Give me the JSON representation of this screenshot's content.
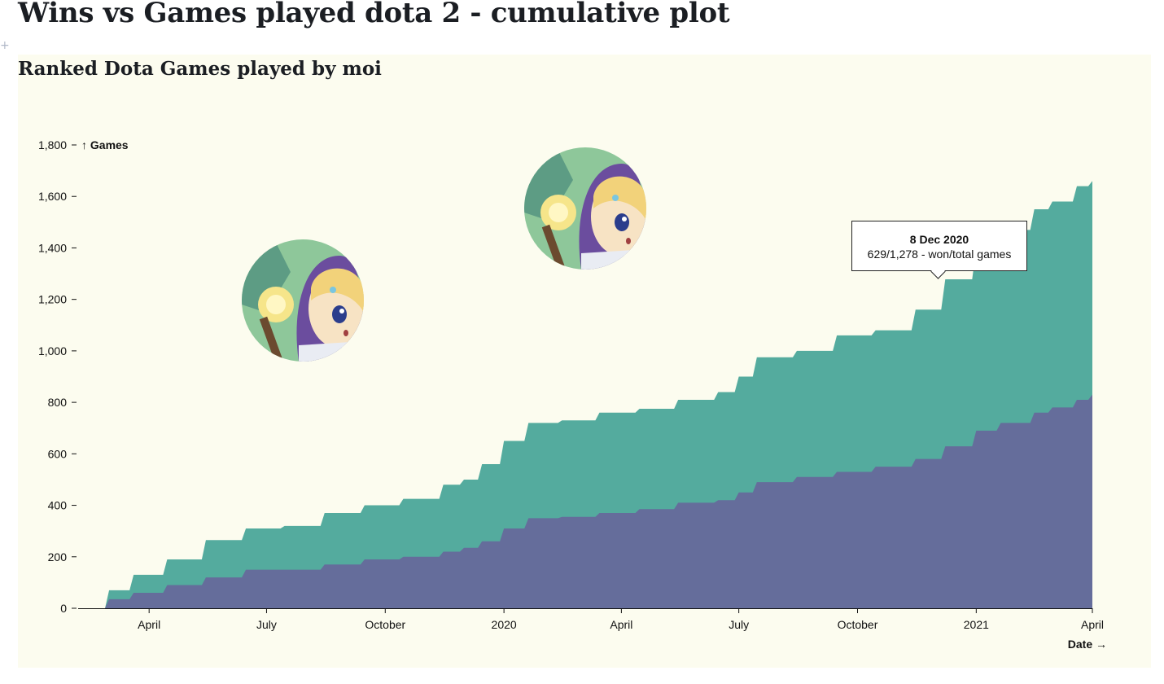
{
  "page": {
    "title": "Wins vs Games played dota 2 - cumulative plot",
    "cell_marker": "+"
  },
  "chart_data": {
    "type": "area",
    "title": "Ranked Dota Games played by moi",
    "xlabel": "Date →",
    "ylabel": "↑ Games",
    "ylim": [
      0,
      1800
    ],
    "xlim": [
      "2019-02-05",
      "2021-04-01"
    ],
    "yticks": [
      0,
      200,
      400,
      600,
      800,
      1000,
      1200,
      1400,
      1600,
      1800
    ],
    "xticks": [
      {
        "date": "2019-04-01",
        "label": "April"
      },
      {
        "date": "2019-07-01",
        "label": "July"
      },
      {
        "date": "2019-10-01",
        "label": "October"
      },
      {
        "date": "2020-01-01",
        "label": "2020"
      },
      {
        "date": "2020-04-01",
        "label": "April"
      },
      {
        "date": "2020-07-01",
        "label": "July"
      },
      {
        "date": "2020-10-01",
        "label": "October"
      },
      {
        "date": "2021-01-01",
        "label": "2021"
      },
      {
        "date": "2021-04-01",
        "label": "April"
      }
    ],
    "dates": [
      "2019-02-05",
      "2019-03-01",
      "2019-03-20",
      "2019-04-15",
      "2019-05-15",
      "2019-06-15",
      "2019-07-15",
      "2019-08-15",
      "2019-09-15",
      "2019-10-15",
      "2019-11-15",
      "2019-12-01",
      "2019-12-15",
      "2020-01-01",
      "2020-01-20",
      "2020-02-15",
      "2020-03-15",
      "2020-04-15",
      "2020-05-15",
      "2020-06-15",
      "2020-07-01",
      "2020-07-15",
      "2020-08-15",
      "2020-09-15",
      "2020-10-15",
      "2020-11-15",
      "2020-12-08",
      "2021-01-01",
      "2021-01-20",
      "2021-02-15",
      "2021-03-01",
      "2021-03-20",
      "2021-04-01"
    ],
    "series": [
      {
        "name": "Games",
        "color": "#54ab9e",
        "values": [
          0,
          70,
          130,
          190,
          265,
          310,
          320,
          370,
          400,
          425,
          480,
          500,
          560,
          650,
          720,
          730,
          760,
          775,
          810,
          840,
          900,
          975,
          1000,
          1060,
          1080,
          1160,
          1278,
          1400,
          1470,
          1550,
          1580,
          1640,
          1660
        ]
      },
      {
        "name": "Wins",
        "color": "#656d9b",
        "values": [
          0,
          35,
          60,
          90,
          120,
          150,
          150,
          170,
          190,
          200,
          220,
          235,
          260,
          310,
          350,
          355,
          370,
          385,
          410,
          420,
          450,
          490,
          510,
          530,
          550,
          580,
          629,
          690,
          720,
          760,
          780,
          810,
          830
        ]
      }
    ],
    "tooltip": {
      "date": "8 Dec 2020",
      "text": "629/1,278 - won/total games"
    }
  }
}
